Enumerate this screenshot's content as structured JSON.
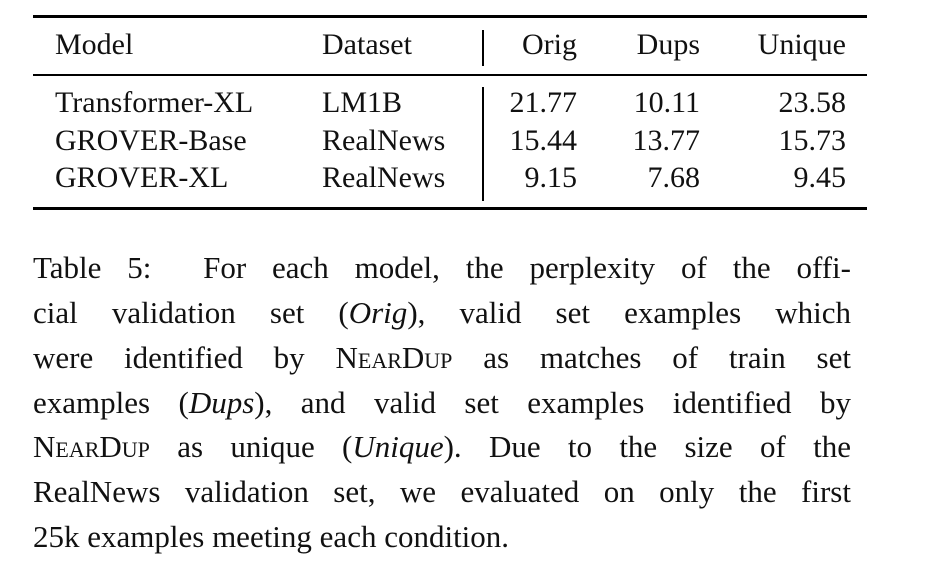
{
  "table": {
    "header": [
      "Model",
      "Dataset",
      "Orig",
      "Dups",
      "Unique"
    ],
    "rows": [
      [
        "Transformer-XL",
        "LM1B",
        21.77,
        10.11,
        23.58
      ],
      [
        "GROVER-Base",
        "RealNews",
        15.44,
        13.77,
        15.73
      ],
      [
        "GROVER-XL",
        "RealNews",
        9.15,
        7.68,
        9.45
      ]
    ]
  },
  "caption": {
    "lines": [
      [
        "Table 5:  For each model, the perplexity of the offi-"
      ],
      [
        "cial validation set (",
        "Orig",
        "), valid set examples which"
      ],
      [
        "were identified by ",
        "NearDup",
        " as matches of train set"
      ],
      [
        "examples (",
        "Dups",
        "), and valid set examples identified by"
      ],
      [
        "NearDup",
        " as unique (",
        "Unique",
        "). Due to the size of the"
      ],
      [
        "RealNews validation set, we evaluated on only the first"
      ],
      [
        "25k examples meeting each condition."
      ]
    ]
  }
}
